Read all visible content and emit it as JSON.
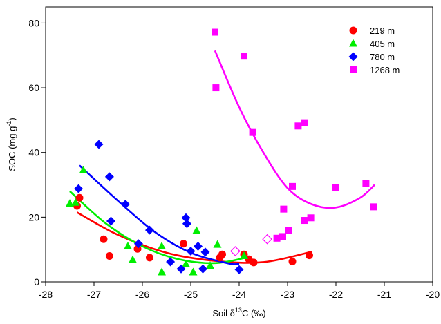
{
  "chart_data": {
    "type": "scatter",
    "xlabel": {
      "pre": "Soil δ",
      "sup": "13",
      "post": "C (‰)"
    },
    "ylabel": {
      "pre": "SOC (mg g",
      "sup": "-1",
      "post": ")"
    },
    "xlim": [
      -28,
      -20
    ],
    "ylim": [
      0,
      85
    ],
    "xticks": [
      -28,
      -27,
      -26,
      -25,
      -24,
      -23,
      -22,
      -21,
      -20
    ],
    "yticks": [
      0,
      20,
      40,
      60,
      80
    ],
    "grid": false,
    "legend_position": "top-right",
    "series": [
      {
        "name": "219 m",
        "marker": "circle",
        "color": "#ff0000",
        "points": [
          [
            -27.3,
            26.0
          ],
          [
            -27.35,
            23.5
          ],
          [
            -26.8,
            13.2
          ],
          [
            -26.68,
            8.0
          ],
          [
            -26.1,
            10.2
          ],
          [
            -25.85,
            7.5
          ],
          [
            -25.15,
            11.8
          ],
          [
            -24.35,
            8.5
          ],
          [
            -24.4,
            7.5
          ],
          [
            -23.9,
            8.5
          ],
          [
            -23.8,
            7.0
          ],
          [
            -23.7,
            6.0
          ],
          [
            -22.9,
            6.3
          ],
          [
            -22.55,
            8.2
          ]
        ],
        "fit": [
          [
            -27.35,
            21.5
          ],
          [
            -26.5,
            14.5
          ],
          [
            -25.5,
            9.0
          ],
          [
            -24.5,
            6.5
          ],
          [
            -23.5,
            6.1
          ],
          [
            -22.5,
            9.3
          ]
        ]
      },
      {
        "name": "405 m",
        "marker": "triangle",
        "color": "#00ee00",
        "points": [
          [
            -27.5,
            24.2
          ],
          [
            -27.38,
            24.5
          ],
          [
            -27.22,
            34.5
          ],
          [
            -26.3,
            11.0
          ],
          [
            -26.2,
            6.8
          ],
          [
            -25.6,
            11.0
          ],
          [
            -25.6,
            3.0
          ],
          [
            -25.1,
            5.5
          ],
          [
            -24.95,
            3.0
          ],
          [
            -24.88,
            15.8
          ],
          [
            -24.45,
            11.5
          ],
          [
            -24.6,
            5.0
          ],
          [
            -23.9,
            8.0
          ]
        ],
        "fit": [
          [
            -27.5,
            28.0
          ],
          [
            -26.75,
            18.0
          ],
          [
            -26.0,
            11.0
          ],
          [
            -25.25,
            7.0
          ],
          [
            -24.5,
            5.8
          ],
          [
            -23.85,
            7.5
          ]
        ]
      },
      {
        "name": "780 m",
        "marker": "diamond",
        "color": "#0000ff",
        "points": [
          [
            -27.32,
            28.8
          ],
          [
            -26.9,
            42.5
          ],
          [
            -26.68,
            32.5
          ],
          [
            -26.65,
            18.8
          ],
          [
            -26.35,
            24.0
          ],
          [
            -26.08,
            11.8
          ],
          [
            -25.85,
            16.0
          ],
          [
            -25.42,
            6.2
          ],
          [
            -25.2,
            4.0
          ],
          [
            -25.1,
            19.8
          ],
          [
            -25.08,
            18.0
          ],
          [
            -25.0,
            9.5
          ],
          [
            -24.85,
            11.0
          ],
          [
            -24.75,
            4.0
          ],
          [
            -24.7,
            9.2
          ],
          [
            -24.0,
            3.8
          ]
        ],
        "fit": [
          [
            -27.3,
            36.0
          ],
          [
            -26.5,
            25.0
          ],
          [
            -25.75,
            15.5
          ],
          [
            -25.0,
            9.0
          ],
          [
            -24.25,
            5.8
          ],
          [
            -24.0,
            5.5
          ]
        ]
      },
      {
        "name": "1268 m",
        "marker": "square",
        "color": "#ff00ff",
        "points": [
          [
            -24.5,
            77.2
          ],
          [
            -24.48,
            60.0
          ],
          [
            -23.9,
            69.8
          ],
          [
            -23.72,
            46.2
          ],
          [
            -23.22,
            13.5
          ],
          [
            -23.1,
            14.0
          ],
          [
            -23.08,
            22.5
          ],
          [
            -22.98,
            16.0
          ],
          [
            -22.9,
            29.5
          ],
          [
            -22.78,
            48.2
          ],
          [
            -22.65,
            49.2
          ],
          [
            -22.65,
            19.0
          ],
          [
            -22.52,
            19.8
          ],
          [
            -22.0,
            29.2
          ],
          [
            -21.38,
            30.5
          ],
          [
            -21.22,
            23.2
          ]
        ],
        "open_diamonds": [
          [
            -24.08,
            9.5
          ],
          [
            -23.42,
            13.2
          ]
        ],
        "fit": [
          [
            -24.5,
            71.5
          ],
          [
            -24.0,
            54.0
          ],
          [
            -23.5,
            40.0
          ],
          [
            -23.0,
            29.0
          ],
          [
            -22.5,
            24.0
          ],
          [
            -22.0,
            23.0
          ],
          [
            -21.5,
            26.0
          ],
          [
            -21.2,
            30.0
          ]
        ]
      }
    ]
  }
}
